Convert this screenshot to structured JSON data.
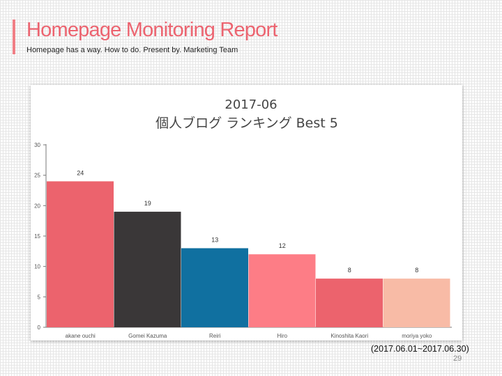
{
  "header": {
    "title": "Homepage Monitoring Report",
    "subtitle": "Homepage has a way. How to do. Present by. Marketing Team"
  },
  "chart_data": {
    "type": "bar",
    "title_line1": "2017-06",
    "title_line2": "個人ブログ ランキング  Best 5",
    "categories": [
      "akane ouchi",
      "Gomei Kazuma",
      "Reiri",
      "Hiro",
      "Kinoshita Kaori",
      "moriya yoko"
    ],
    "values": [
      24,
      19,
      13,
      12,
      8,
      8
    ],
    "colors": [
      "#ec636d",
      "#3a3738",
      "#1070a0",
      "#fd7d86",
      "#ec636d",
      "#f8bba6"
    ],
    "ylim": [
      0,
      30
    ],
    "yticks": [
      0,
      5,
      10,
      15,
      20,
      25,
      30
    ],
    "grid": false,
    "legend": "none"
  },
  "footer": {
    "period": "(2017.06.01~2017.06.30)",
    "page_number": "29"
  }
}
